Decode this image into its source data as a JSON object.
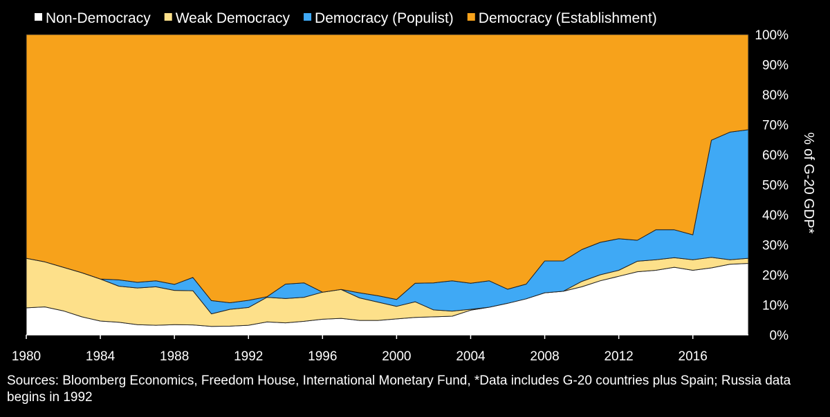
{
  "chart_data": {
    "type": "area",
    "stacked": true,
    "percent": true,
    "x": [
      1980,
      1981,
      1982,
      1983,
      1984,
      1985,
      1986,
      1987,
      1988,
      1989,
      1990,
      1991,
      1992,
      1993,
      1994,
      1995,
      1996,
      1997,
      1998,
      1999,
      2000,
      2001,
      2002,
      2003,
      2004,
      2005,
      2006,
      2007,
      2008,
      2009,
      2010,
      2011,
      2012,
      2013,
      2014,
      2015,
      2016,
      2017,
      2018,
      2019
    ],
    "series": [
      {
        "name": "Non-Democracy",
        "color": "#ffffff",
        "values": [
          9,
          9.3,
          8,
          6,
          4.6,
          4.2,
          3.4,
          3.2,
          3.4,
          3.3,
          2.8,
          2.9,
          3.2,
          4.3,
          4.0,
          4.5,
          5.2,
          5.5,
          4.8,
          4.8,
          5.3,
          5.8,
          6.0,
          6.2,
          8.2,
          9.2,
          10.5,
          12.0,
          14.0,
          14.5,
          16.0,
          18.0,
          19.5,
          21.0,
          21.5,
          22.5,
          21.5,
          22.3,
          23.5,
          23.8
        ]
      },
      {
        "name": "Weak Democracy",
        "color": "#fde08a",
        "values": [
          16.5,
          15,
          14.5,
          14.7,
          14,
          12,
          12.2,
          12.8,
          11.4,
          11.4,
          4.2,
          5.6,
          5.9,
          8.2,
          8.1,
          8.0,
          9.0,
          9.6,
          7.5,
          6.1,
          4.2,
          5.2,
          2.3,
          1.7,
          0.3,
          0,
          0,
          0,
          0,
          0,
          1.8,
          2.0,
          2.0,
          3.5,
          3.5,
          3.2,
          3.5,
          3.5,
          1.5,
          1.7
        ]
      },
      {
        "name": "Democracy (Populist)",
        "color": "#3fa9f5",
        "values": [
          0,
          0,
          0,
          0,
          0,
          2.1,
          1.9,
          2.0,
          2.0,
          4.4,
          4.4,
          2.2,
          2.4,
          0.2,
          4.8,
          4.8,
          0,
          0,
          1.7,
          2.1,
          2.3,
          6.2,
          9.0,
          10.1,
          8.7,
          8.8,
          4.7,
          4.9,
          10.6,
          10.1,
          10.6,
          10.8,
          10.5,
          7.0,
          10.0,
          9.3,
          8.3,
          39.0,
          42.5,
          42.8
        ]
      },
      {
        "name": "Democracy (Establishment)",
        "color": "#f7a21b",
        "values": [
          74.5,
          75.7,
          77.5,
          79.3,
          81.4,
          81.7,
          82.5,
          82.0,
          83.2,
          80.9,
          88.6,
          89.3,
          88.5,
          87.3,
          83.1,
          82.7,
          85.8,
          84.9,
          86.0,
          87.0,
          88.2,
          82.8,
          82.7,
          82.0,
          82.8,
          82.0,
          84.8,
          83.1,
          75.4,
          75.4,
          71.6,
          69.2,
          68.0,
          68.5,
          65.0,
          65.0,
          66.7,
          35.2,
          32.5,
          31.7
        ]
      }
    ],
    "x_tick_labels": [
      "1980",
      "1984",
      "1988",
      "1992",
      "1996",
      "2000",
      "2004",
      "2008",
      "2012",
      "2016"
    ],
    "y_tick_labels": [
      "0%",
      "10%",
      "20%",
      "30%",
      "40%",
      "50%",
      "60%",
      "70%",
      "80%",
      "90%",
      "100%"
    ],
    "ylim": [
      0,
      100
    ],
    "xlabel": "",
    "ylabel": "% of G-20 GDP*",
    "y_axis_position": "right",
    "legend_position": "top",
    "grid": false
  },
  "source_note": "Sources: Bloomberg Economics, Freedom House, International Monetary Fund, *Data includes G-20 countries plus Spain; Russia data begins in 1992"
}
